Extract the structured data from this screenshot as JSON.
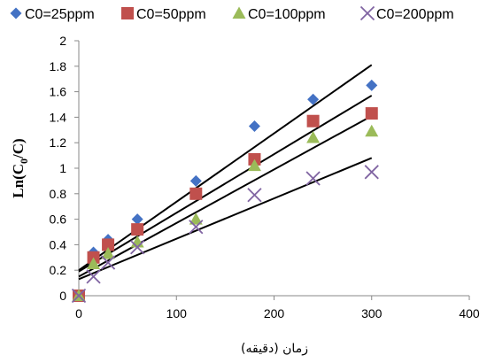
{
  "chart_data": {
    "type": "scatter",
    "xlabel": "زمان (دقیقه)",
    "ylabel": {
      "main": "Ln(C",
      "sub": "0",
      "end": "/C)"
    },
    "xlim": [
      0,
      400
    ],
    "ylim": [
      0,
      2
    ],
    "xticks": [
      0,
      100,
      200,
      300,
      400
    ],
    "yticks": [
      0,
      0.2,
      0.4,
      0.6,
      0.8,
      1,
      1.2,
      1.4,
      1.6,
      1.8,
      2
    ],
    "legend_position": "top",
    "grid": false,
    "series": [
      {
        "name": "C0=25ppm",
        "marker": "diamond",
        "color": "#4472C4",
        "x": [
          0,
          15,
          30,
          60,
          120,
          180,
          240,
          300
        ],
        "y": [
          0,
          0.34,
          0.44,
          0.6,
          0.9,
          1.33,
          1.54,
          1.65
        ],
        "trend": {
          "x": [
            0,
            300
          ],
          "y": [
            0.2,
            1.81
          ]
        }
      },
      {
        "name": "C0=50ppm",
        "marker": "square",
        "color": "#C0504D",
        "x": [
          0,
          15,
          30,
          60,
          120,
          180,
          240,
          300
        ],
        "y": [
          0,
          0.3,
          0.4,
          0.52,
          0.8,
          1.07,
          1.37,
          1.43
        ],
        "trend": {
          "x": [
            0,
            300
          ],
          "y": [
            0.19,
            1.57
          ]
        }
      },
      {
        "name": "C0=100ppm",
        "marker": "triangle",
        "color": "#9BBB59",
        "x": [
          0,
          15,
          30,
          60,
          120,
          180,
          240,
          300
        ],
        "y": [
          0,
          0.25,
          0.33,
          0.42,
          0.6,
          1.02,
          1.24,
          1.29
        ],
        "trend": {
          "x": [
            0,
            300
          ],
          "y": [
            0.15,
            1.41
          ]
        }
      },
      {
        "name": "C0=200ppm",
        "marker": "x",
        "color": "#8064A2",
        "x": [
          0,
          15,
          30,
          60,
          120,
          180,
          240,
          300
        ],
        "y": [
          0,
          0.15,
          0.26,
          0.38,
          0.54,
          0.79,
          0.92,
          0.97
        ],
        "trend": {
          "x": [
            0,
            300
          ],
          "y": [
            0.13,
            1.08
          ]
        }
      }
    ]
  }
}
